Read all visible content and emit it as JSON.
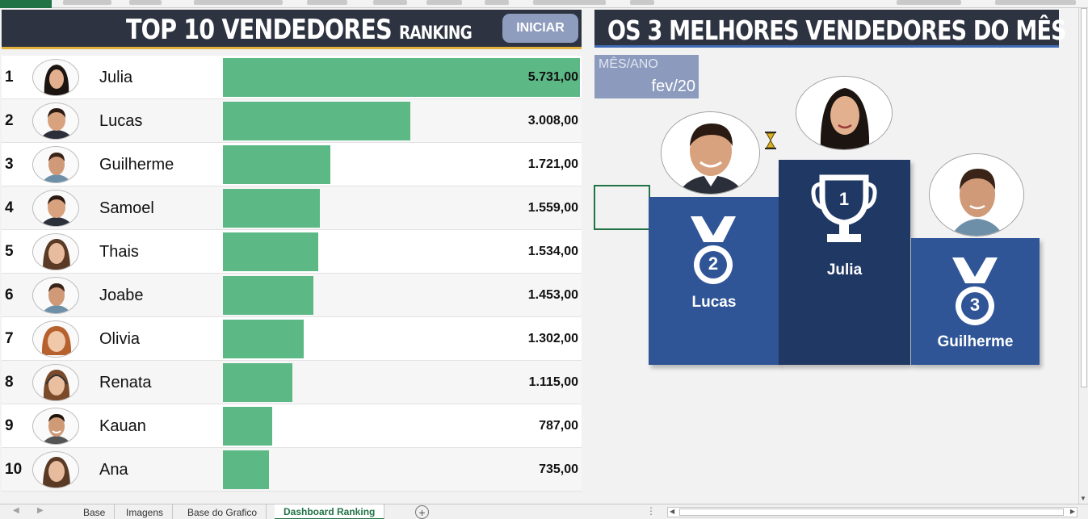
{
  "left_panel": {
    "title": "TOP 10 VENDEDORES",
    "title_suffix": "RANKING",
    "start_button": "INICIAR"
  },
  "ranking": [
    {
      "rank": "1",
      "name": "Julia",
      "value": "5.731,00",
      "amount": 5731,
      "avatar": "female-avatar-dark-hair"
    },
    {
      "rank": "2",
      "name": "Lucas",
      "value": "3.008,00",
      "amount": 3008,
      "avatar": "male-avatar-suit"
    },
    {
      "rank": "3",
      "name": "Guilherme",
      "value": "1.721,00",
      "amount": 1721,
      "avatar": "male-avatar-short-hair"
    },
    {
      "rank": "4",
      "name": "Samoel",
      "value": "1.559,00",
      "amount": 1559,
      "avatar": "male-avatar-suit"
    },
    {
      "rank": "5",
      "name": "Thais",
      "value": "1.534,00",
      "amount": 1534,
      "avatar": "female-avatar-long-hair"
    },
    {
      "rank": "6",
      "name": "Joabe",
      "value": "1.453,00",
      "amount": 1453,
      "avatar": "male-avatar-short-hair"
    },
    {
      "rank": "7",
      "name": "Olivia",
      "value": "1.302,00",
      "amount": 1302,
      "avatar": "female-avatar-red-hair"
    },
    {
      "rank": "8",
      "name": "Renata",
      "value": "1.115,00",
      "amount": 1115,
      "avatar": "female-avatar-headset"
    },
    {
      "rank": "9",
      "name": "Kauan",
      "value": "787,00",
      "amount": 787,
      "avatar": "male-avatar-smiling"
    },
    {
      "rank": "10",
      "name": "Ana",
      "value": "735,00",
      "amount": 735,
      "avatar": "female-avatar-long-hair"
    }
  ],
  "right_panel": {
    "title": "OS 3 MELHORES VENDEDORES DO MÊS",
    "month_label": "MÊS/ANO",
    "month_value": "fev/20",
    "podium": {
      "first": {
        "name": "Julia",
        "place": "1",
        "icon": "trophy-icon"
      },
      "second": {
        "name": "Lucas",
        "place": "2",
        "icon": "medal-icon"
      },
      "third": {
        "name": "Guilherme",
        "place": "3",
        "icon": "medal-icon"
      }
    }
  },
  "sheet_tabs": [
    "Base",
    "Imagens",
    "Base do Grafico",
    "Dashboard Ranking"
  ],
  "active_tab": "Dashboard Ranking",
  "colors": {
    "header_bg": "#2d3340",
    "bar": "#5cb885",
    "podium_blue": "#2f5597",
    "podium_dark": "#203864",
    "month_box": "#8c9bbd",
    "gold_line": "#e3b23c"
  }
}
